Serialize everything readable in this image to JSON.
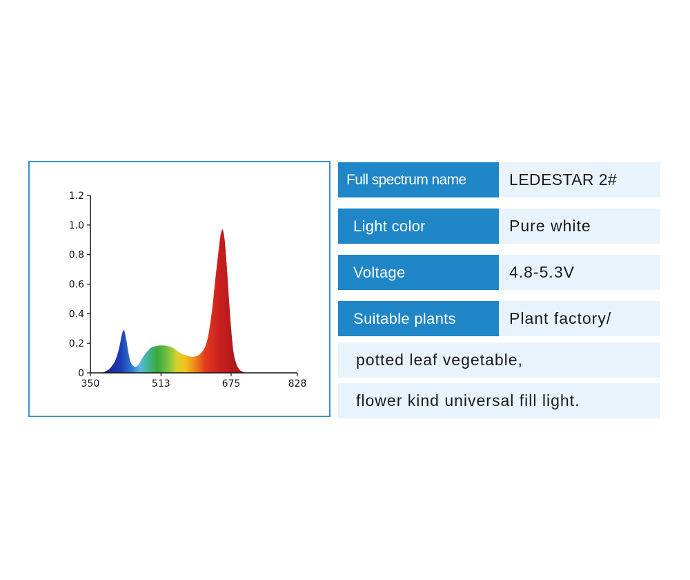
{
  "chart_data": {
    "type": "area",
    "x_ticks": [
      "350",
      "513",
      "675",
      "828"
    ],
    "y_ticks": [
      "0",
      "0.2",
      "0.4",
      "0.6",
      "0.8",
      "1.0",
      "1.2"
    ],
    "xlim": [
      350,
      828
    ],
    "ylim": [
      0,
      1.2
    ],
    "x": [
      375,
      385,
      395,
      405,
      412,
      418,
      422,
      427,
      432,
      437,
      442,
      448,
      455,
      462,
      470,
      480,
      490,
      500,
      510,
      520,
      530,
      540,
      550,
      560,
      570,
      580,
      590,
      600,
      610,
      618,
      625,
      632,
      638,
      645,
      650,
      655,
      660,
      665,
      670,
      675,
      680,
      685,
      690,
      695,
      700,
      710,
      720
    ],
    "y": [
      0.0,
      0.01,
      0.03,
      0.07,
      0.12,
      0.19,
      0.25,
      0.29,
      0.24,
      0.15,
      0.08,
      0.05,
      0.04,
      0.06,
      0.1,
      0.14,
      0.17,
      0.18,
      0.185,
      0.185,
      0.18,
      0.17,
      0.15,
      0.13,
      0.12,
      0.11,
      0.11,
      0.12,
      0.15,
      0.2,
      0.3,
      0.45,
      0.62,
      0.8,
      0.92,
      0.97,
      0.9,
      0.72,
      0.5,
      0.3,
      0.15,
      0.08,
      0.04,
      0.02,
      0.01,
      0.0,
      0.0
    ],
    "gradient_stops": [
      {
        "nm": 380,
        "color": "#1a1f8c"
      },
      {
        "nm": 420,
        "color": "#1e3db5"
      },
      {
        "nm": 445,
        "color": "#2f76d0"
      },
      {
        "nm": 465,
        "color": "#5ab8de"
      },
      {
        "nm": 485,
        "color": "#3fb48a"
      },
      {
        "nm": 505,
        "color": "#3aa83a"
      },
      {
        "nm": 530,
        "color": "#7cc242"
      },
      {
        "nm": 550,
        "color": "#d6d12a"
      },
      {
        "nm": 570,
        "color": "#f2c21b"
      },
      {
        "nm": 590,
        "color": "#f08a1c"
      },
      {
        "nm": 615,
        "color": "#e23a1e"
      },
      {
        "nm": 650,
        "color": "#c81e1e"
      },
      {
        "nm": 700,
        "color": "#a3161b"
      }
    ]
  },
  "colors": {
    "panel_border": "#3a8fd4",
    "label_bg": "#1f86c8",
    "value_bg": "#e9f3fb"
  },
  "spec": {
    "name_label": "Full spectrum name",
    "name_value": "LEDESTAR 2#",
    "color_label": "Light color",
    "color_value": "Pure white",
    "voltage_label": "Voltage",
    "voltage_value": "4.8-5.3V",
    "plants_label": "Suitable plants",
    "plants_value": "Plant factory/",
    "plants_line2": "potted leaf vegetable,",
    "plants_line3": "flower kind universal fill light."
  }
}
